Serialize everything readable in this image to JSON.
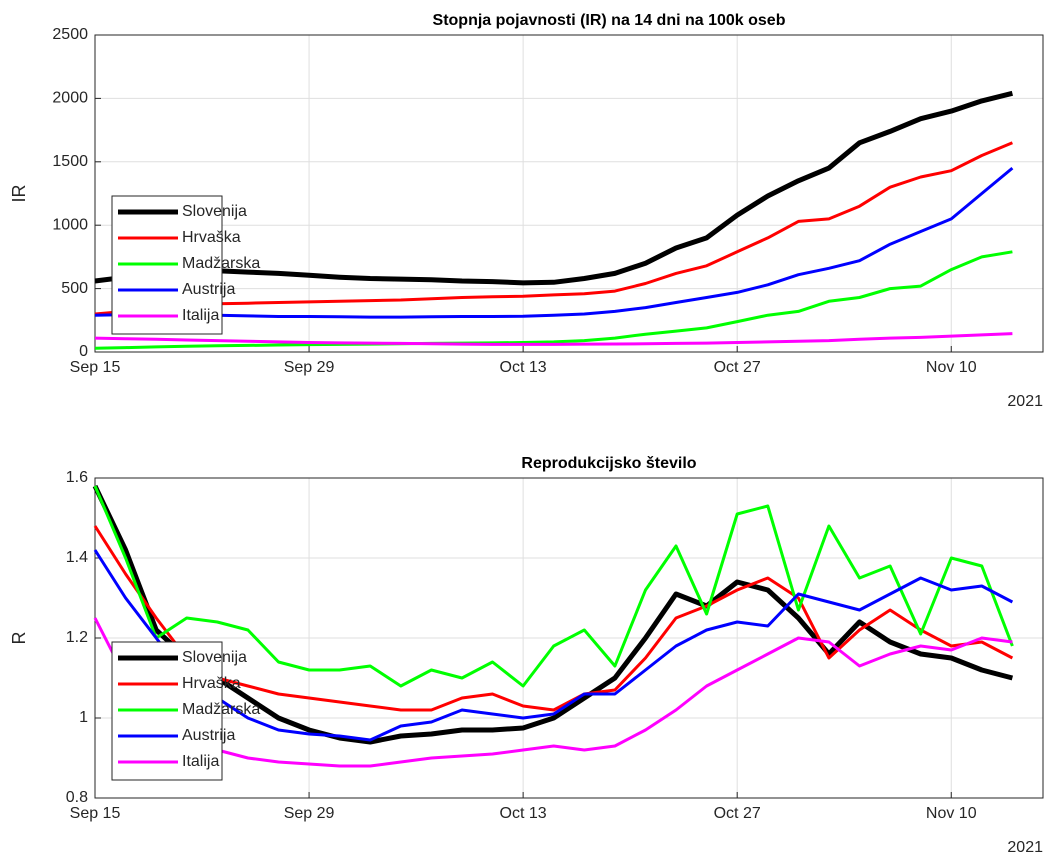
{
  "chart_data": [
    {
      "type": "line",
      "title": "Stopnja pojavnosti (IR) na 14 dni na 100k oseb",
      "ylabel": "IR",
      "xlabel_year": "2021",
      "x": [
        "2021-09-15",
        "2021-09-17",
        "2021-09-19",
        "2021-09-21",
        "2021-09-23",
        "2021-09-25",
        "2021-09-27",
        "2021-09-29",
        "2021-10-01",
        "2021-10-03",
        "2021-10-05",
        "2021-10-07",
        "2021-10-09",
        "2021-10-11",
        "2021-10-13",
        "2021-10-15",
        "2021-10-17",
        "2021-10-19",
        "2021-10-21",
        "2021-10-23",
        "2021-10-25",
        "2021-10-27",
        "2021-10-29",
        "2021-10-31",
        "2021-11-02",
        "2021-11-04",
        "2021-11-06",
        "2021-11-08",
        "2021-11-10",
        "2021-11-12",
        "2021-11-14"
      ],
      "xlim": [
        "2021-09-15",
        "2021-11-16"
      ],
      "xticks": [
        {
          "value": "2021-09-15",
          "label": "Sep 15"
        },
        {
          "value": "2021-09-29",
          "label": "Sep 29"
        },
        {
          "value": "2021-10-13",
          "label": "Oct 13"
        },
        {
          "value": "2021-10-27",
          "label": "Oct 27"
        },
        {
          "value": "2021-11-10",
          "label": "Nov 10"
        }
      ],
      "ylim": [
        0,
        2500
      ],
      "yticks": [
        0,
        500,
        1000,
        1500,
        2000,
        2500
      ],
      "grid": true,
      "legend": "southwest",
      "series": [
        {
          "name": "Slovenija",
          "color": "#000000",
          "values": [
            560,
            590,
            620,
            640,
            640,
            630,
            620,
            605,
            590,
            580,
            575,
            570,
            560,
            555,
            545,
            550,
            580,
            620,
            700,
            820,
            900,
            1080,
            1230,
            1350,
            1450,
            1650,
            1740,
            1840,
            1900,
            1980,
            2040
          ]
        },
        {
          "name": "Hrvaška",
          "color": "#ff0000",
          "values": [
            300,
            320,
            340,
            360,
            380,
            385,
            390,
            395,
            400,
            405,
            410,
            420,
            430,
            435,
            440,
            450,
            460,
            480,
            540,
            620,
            680,
            790,
            900,
            1030,
            1050,
            1150,
            1300,
            1380,
            1430,
            1550,
            1650
          ]
        },
        {
          "name": "Madžarska",
          "color": "#00ff00",
          "values": [
            30,
            35,
            40,
            45,
            50,
            52,
            55,
            58,
            60,
            62,
            65,
            68,
            70,
            72,
            75,
            80,
            90,
            110,
            140,
            165,
            190,
            240,
            290,
            320,
            400,
            430,
            500,
            520,
            650,
            750,
            790
          ]
        },
        {
          "name": "Austrija",
          "color": "#0000ff",
          "values": [
            290,
            295,
            300,
            295,
            290,
            285,
            280,
            280,
            278,
            275,
            275,
            278,
            280,
            280,
            282,
            290,
            300,
            320,
            350,
            390,
            430,
            470,
            530,
            610,
            660,
            720,
            850,
            950,
            1050,
            1250,
            1450
          ]
        },
        {
          "name": "Italija",
          "color": "#ff00ff",
          "values": [
            110,
            105,
            100,
            95,
            90,
            85,
            80,
            75,
            72,
            70,
            68,
            65,
            62,
            60,
            60,
            60,
            62,
            63,
            65,
            68,
            70,
            75,
            80,
            85,
            90,
            100,
            110,
            115,
            125,
            135,
            145
          ]
        }
      ]
    },
    {
      "type": "line",
      "title": "Reprodukcijsko število",
      "ylabel": "R",
      "xlabel_year": "2021",
      "x": [
        "2021-09-15",
        "2021-09-17",
        "2021-09-19",
        "2021-09-21",
        "2021-09-23",
        "2021-09-25",
        "2021-09-27",
        "2021-09-29",
        "2021-10-01",
        "2021-10-03",
        "2021-10-05",
        "2021-10-07",
        "2021-10-09",
        "2021-10-11",
        "2021-10-13",
        "2021-10-15",
        "2021-10-17",
        "2021-10-19",
        "2021-10-21",
        "2021-10-23",
        "2021-10-25",
        "2021-10-27",
        "2021-10-29",
        "2021-10-31",
        "2021-11-02",
        "2021-11-04",
        "2021-11-06",
        "2021-11-08",
        "2021-11-10",
        "2021-11-12",
        "2021-11-14"
      ],
      "xlim": [
        "2021-09-15",
        "2021-11-16"
      ],
      "xticks": [
        {
          "value": "2021-09-15",
          "label": "Sep 15"
        },
        {
          "value": "2021-09-29",
          "label": "Sep 29"
        },
        {
          "value": "2021-10-13",
          "label": "Oct 13"
        },
        {
          "value": "2021-10-27",
          "label": "Oct 27"
        },
        {
          "value": "2021-11-10",
          "label": "Nov 10"
        }
      ],
      "ylim": [
        0.8,
        1.6
      ],
      "yticks": [
        0.8,
        1,
        1.2,
        1.4,
        1.6
      ],
      "grid": true,
      "legend": "southwest",
      "series": [
        {
          "name": "Slovenija",
          "color": "#000000",
          "values": [
            1.58,
            1.42,
            1.22,
            1.15,
            1.1,
            1.05,
            1.0,
            0.97,
            0.95,
            0.94,
            0.955,
            0.96,
            0.97,
            0.97,
            0.975,
            1.0,
            1.05,
            1.1,
            1.2,
            1.31,
            1.28,
            1.34,
            1.32,
            1.25,
            1.16,
            1.24,
            1.19,
            1.16,
            1.15,
            1.12,
            1.1
          ]
        },
        {
          "name": "Hrvaška",
          "color": "#ff0000",
          "values": [
            1.48,
            1.36,
            1.25,
            1.15,
            1.1,
            1.08,
            1.06,
            1.05,
            1.04,
            1.03,
            1.02,
            1.02,
            1.05,
            1.06,
            1.03,
            1.02,
            1.06,
            1.07,
            1.15,
            1.25,
            1.28,
            1.32,
            1.35,
            1.3,
            1.15,
            1.22,
            1.27,
            1.22,
            1.18,
            1.19,
            1.15
          ]
        },
        {
          "name": "Madžarska",
          "color": "#00ff00",
          "values": [
            1.58,
            1.4,
            1.2,
            1.25,
            1.24,
            1.22,
            1.14,
            1.12,
            1.12,
            1.13,
            1.08,
            1.12,
            1.1,
            1.14,
            1.08,
            1.18,
            1.22,
            1.13,
            1.32,
            1.43,
            1.26,
            1.51,
            1.53,
            1.27,
            1.48,
            1.35,
            1.38,
            1.21,
            1.4,
            1.38,
            1.18
          ]
        },
        {
          "name": "Austrija",
          "color": "#0000ff",
          "values": [
            1.42,
            1.3,
            1.2,
            1.1,
            1.05,
            1.0,
            0.97,
            0.96,
            0.955,
            0.945,
            0.98,
            0.99,
            1.02,
            1.01,
            1.0,
            1.01,
            1.06,
            1.06,
            1.12,
            1.18,
            1.22,
            1.24,
            1.23,
            1.31,
            1.29,
            1.27,
            1.31,
            1.35,
            1.32,
            1.33,
            1.29
          ]
        },
        {
          "name": "Italija",
          "color": "#ff00ff",
          "values": [
            1.25,
            1.1,
            1.0,
            0.95,
            0.92,
            0.9,
            0.89,
            0.885,
            0.88,
            0.88,
            0.89,
            0.9,
            0.905,
            0.91,
            0.92,
            0.93,
            0.92,
            0.93,
            0.97,
            1.02,
            1.08,
            1.12,
            1.16,
            1.2,
            1.19,
            1.13,
            1.16,
            1.18,
            1.17,
            1.2,
            1.19
          ]
        }
      ]
    }
  ]
}
